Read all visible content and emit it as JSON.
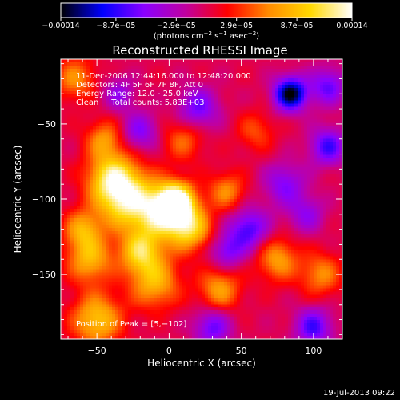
{
  "chart_data": {
    "type": "heatmap",
    "title": "Reconstructed RHESSI Image",
    "xlabel": "Heliocentric X (arcsec)",
    "ylabel": "Heliocentric Y (arcsec)",
    "xlim": [
      -75,
      120
    ],
    "ylim": [
      -193,
      -7
    ],
    "x_ticks": [
      {
        "value": -50,
        "label": "−50"
      },
      {
        "value": 0,
        "label": "0"
      },
      {
        "value": 50,
        "label": "50"
      },
      {
        "value": 100,
        "label": "100"
      }
    ],
    "y_ticks": [
      {
        "value": -50,
        "label": "−50"
      },
      {
        "value": -100,
        "label": "−100"
      },
      {
        "value": -150,
        "label": "−150"
      }
    ],
    "colorbar": {
      "range": [
        -0.00014,
        0.00014
      ],
      "colors": [
        "#000000",
        "#0000ff",
        "#8a00ff",
        "#c000a0",
        "#ff0000",
        "#ff8c00",
        "#ffd800",
        "#ffffff"
      ],
      "ticks": [
        {
          "value": -0.00014,
          "label": "−0.00014"
        },
        {
          "value": -8.7e-05,
          "label": "−8.7e−05"
        },
        {
          "value": -2.9e-05,
          "label": "−2.9e−05"
        },
        {
          "value": 2.9e-05,
          "label": "2.9e−05"
        },
        {
          "value": 8.7e-05,
          "label": "8.7e−05"
        },
        {
          "value": 0.00014,
          "label": "0.00014"
        }
      ],
      "unit_main": "(photons cm",
      "unit_sup1": "−2",
      "unit_mid": " s",
      "unit_sup2": "−1",
      "unit_end": " asec",
      "unit_sup3": "−2",
      "unit_close": ")"
    },
    "annotations": [
      "11-Dec-2006 12:44:16.000 to 12:48:20.000",
      "Detectors: 4F 5F 6F 7F 8F, Att 0",
      "Energy Range: 12.0 - 25.0 keV",
      "Clean     Total counts: 5.83E+03"
    ],
    "peak_label": "Position of Peak = [5,−102]",
    "peak": [
      5,
      -102
    ],
    "blobs": [
      {
        "x": -30,
        "y": -100,
        "v": 0.00011,
        "s": 14
      },
      {
        "x": -40,
        "y": -85,
        "v": 9e-05,
        "s": 12
      },
      {
        "x": -5,
        "y": -110,
        "v": 0.0001,
        "s": 13
      },
      {
        "x": 5,
        "y": -102,
        "v": 0.00014,
        "s": 9
      },
      {
        "x": 15,
        "y": -120,
        "v": 9e-05,
        "s": 10
      },
      {
        "x": -20,
        "y": -135,
        "v": 9e-05,
        "s": 10
      },
      {
        "x": -55,
        "y": -140,
        "v": 8e-05,
        "s": 11
      },
      {
        "x": -10,
        "y": -155,
        "v": 8e-05,
        "s": 12
      },
      {
        "x": -50,
        "y": -180,
        "v": 9e-05,
        "s": 12
      },
      {
        "x": 35,
        "y": -160,
        "v": 7e-05,
        "s": 10
      },
      {
        "x": 40,
        "y": -95,
        "v": 6e-05,
        "s": 9
      },
      {
        "x": 75,
        "y": -140,
        "v": 7e-05,
        "s": 10
      },
      {
        "x": 105,
        "y": -150,
        "v": 6e-05,
        "s": 10
      },
      {
        "x": 10,
        "y": -60,
        "v": 5e-05,
        "s": 10
      },
      {
        "x": -45,
        "y": -60,
        "v": 6e-05,
        "s": 9
      },
      {
        "x": 60,
        "y": -55,
        "v": 4e-05,
        "s": 9
      },
      {
        "x": -65,
        "y": -20,
        "v": 6e-05,
        "s": 10
      },
      {
        "x": -60,
        "y": -120,
        "v": 7e-05,
        "s": 9
      },
      {
        "x": 84,
        "y": -30,
        "v": -0.00014,
        "s": 8
      },
      {
        "x": 110,
        "y": -25,
        "v": -7e-05,
        "s": 9
      },
      {
        "x": 110,
        "y": -65,
        "v": -8e-05,
        "s": 9
      },
      {
        "x": 55,
        "y": -120,
        "v": -8e-05,
        "s": 10
      },
      {
        "x": 20,
        "y": -40,
        "v": -7e-05,
        "s": 10
      },
      {
        "x": -20,
        "y": -55,
        "v": -6e-05,
        "s": 9
      },
      {
        "x": 80,
        "y": -90,
        "v": -6e-05,
        "s": 10
      },
      {
        "x": 30,
        "y": -185,
        "v": -7e-05,
        "s": 9
      },
      {
        "x": 100,
        "y": -185,
        "v": -8e-05,
        "s": 9
      },
      {
        "x": -35,
        "y": -30,
        "v": -5e-05,
        "s": 8
      },
      {
        "x": 40,
        "y": -135,
        "v": -6e-05,
        "s": 8
      },
      {
        "x": 95,
        "y": -110,
        "v": -5e-05,
        "s": 9
      }
    ]
  },
  "footer": {
    "timestamp": "19-Jul-2013 09:22"
  }
}
